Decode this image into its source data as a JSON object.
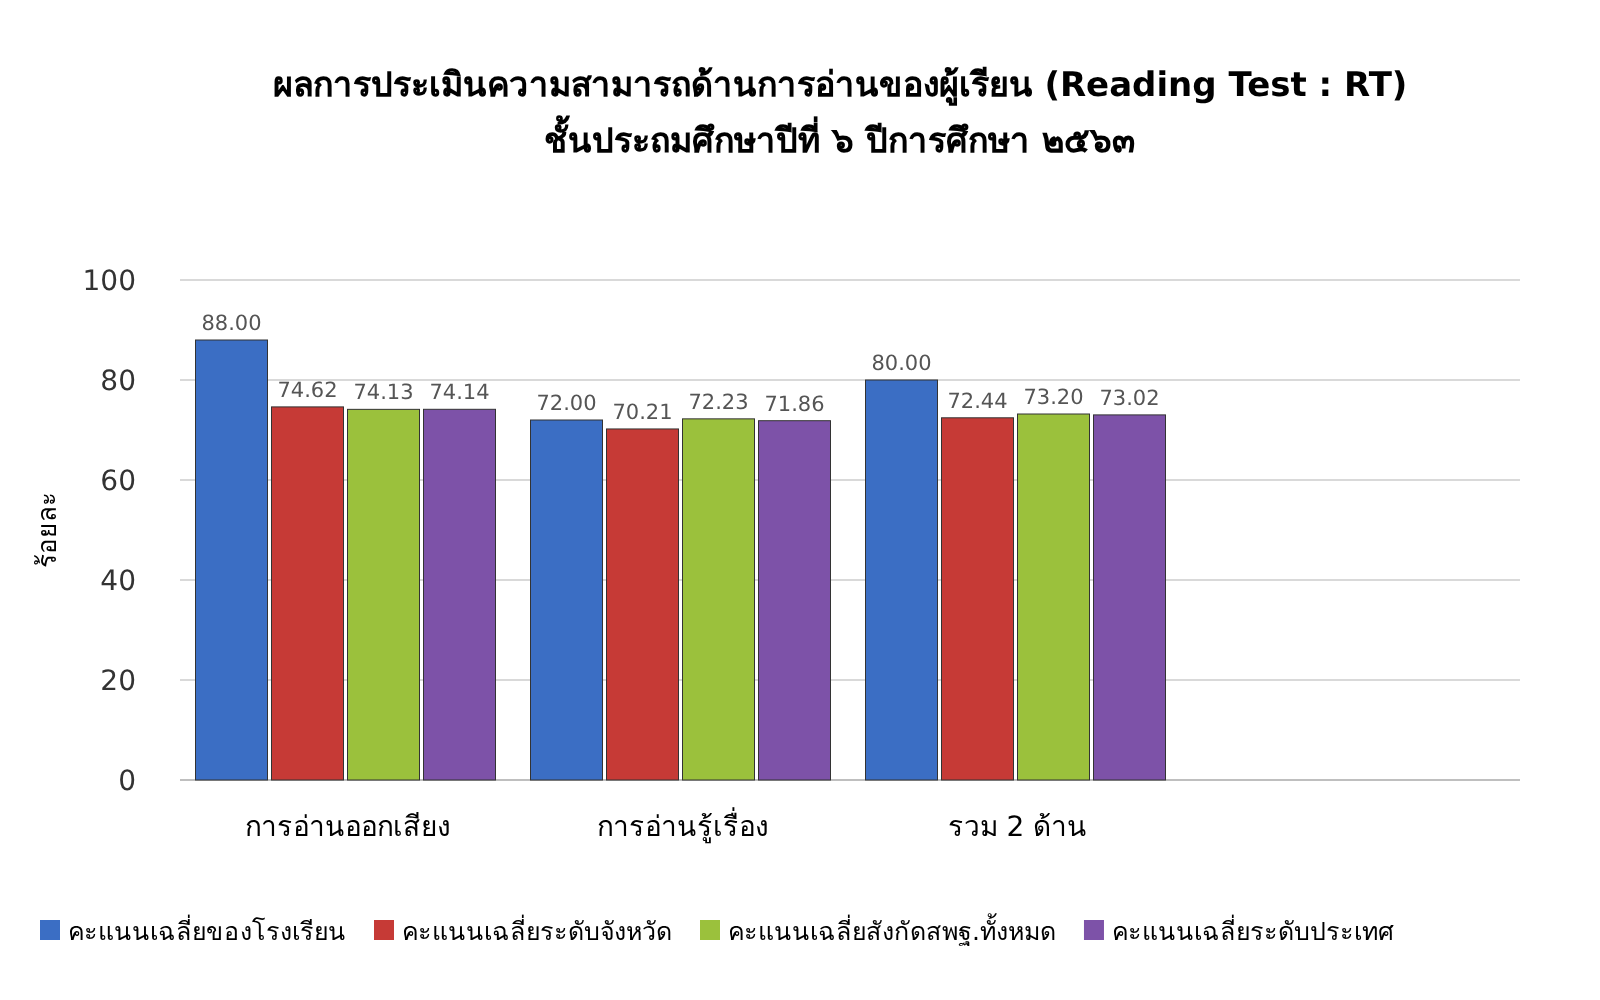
{
  "chart_data": {
    "type": "bar",
    "title": "ผลการประเมินความสามารถด้านการอ่านของผู้เรียน (Reading Test : RT)",
    "subtitle": "ชั้นประถมศึกษาปีที่  ๖ ปีการศึกษา ๒๕๖๓",
    "ylabel": "ร้อยละ",
    "categories": [
      "การอ่านออกเสียง",
      "การอ่านรู้เรื่อง",
      "รวม 2 ด้าน",
      null
    ],
    "series": [
      {
        "name": "คะแนนเฉลี่ยของโรงเรียน",
        "color": "#3b6ec4",
        "values": [
          88.0,
          72.0,
          80.0,
          null
        ],
        "value_labels": [
          "88.00",
          "72.00",
          "80.00",
          null
        ]
      },
      {
        "name": "คะแนนเฉลี่ยระดับจังหวัด",
        "color": "#c63a36",
        "values": [
          74.62,
          70.21,
          72.44,
          null
        ],
        "value_labels": [
          "74.62",
          "70.21",
          "72.44",
          null
        ]
      },
      {
        "name": "คะแนนเฉลี่ยสังกัดสพฐ.ทั้งหมด",
        "color": "#9bc13c",
        "values": [
          74.13,
          72.23,
          73.2,
          null
        ],
        "value_labels": [
          "74.13",
          "72.23",
          "73.20",
          null
        ]
      },
      {
        "name": "คะแนนเฉลี่ยระดับประเทศ",
        "color": "#7d52a8",
        "values": [
          74.14,
          71.86,
          73.02,
          null
        ],
        "value_labels": [
          "74.14",
          "71.86",
          "73.02",
          null
        ]
      }
    ],
    "ylim": [
      0,
      100
    ],
    "yticks": [
      0,
      20,
      40,
      60,
      80,
      100
    ],
    "grid": "y",
    "legend": "bottom"
  }
}
